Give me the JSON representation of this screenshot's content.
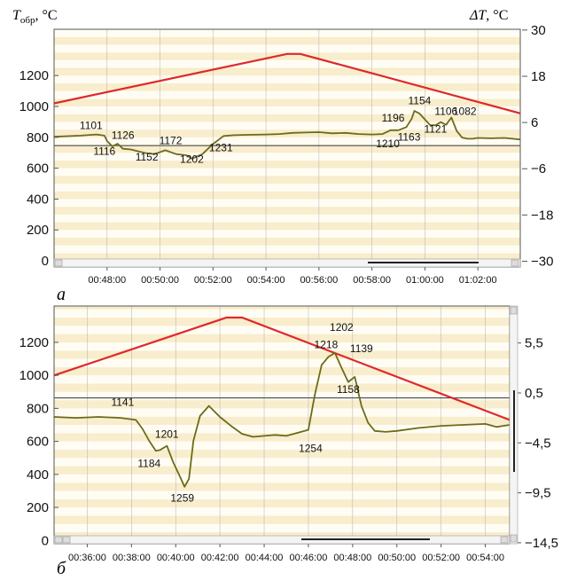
{
  "colors": {
    "band_light": "#fffdf3",
    "band_dark": "#f8edcc",
    "frame": "#555555",
    "temperature_line": "#e0282a",
    "delta_line": "#6c6b1a",
    "reference_line": "#333333",
    "grid": "#bbbbbb"
  },
  "chart_data": [
    {
      "type": "line",
      "panel_label": "а",
      "left_axis_label": {
        "main": "T",
        "sub": "обр",
        "unit": ", °C"
      },
      "right_axis_label": {
        "main": "ΔT",
        "unit": ", °C"
      },
      "x_ticks": [
        "00:48:00",
        "00:50:00",
        "00:52:00",
        "00:54:00",
        "00:56:00",
        "00:58:00",
        "01:00:00",
        "01:02:00"
      ],
      "x_range_min": [
        46.0,
        63.6
      ],
      "y_left_ticks": [
        "0",
        "200",
        "400",
        "600",
        "800",
        "1000",
        "1200"
      ],
      "y_left_range": [
        -40,
        1500
      ],
      "y_right_ticks": [
        "30",
        "18",
        "6",
        "−6",
        "−18",
        "−30"
      ],
      "y_right_range": [
        -31.5,
        30.2
      ],
      "reference_delta": 0,
      "temperature_series": {
        "x_min": [
          46.0,
          54.8,
          55.3,
          63.6
        ],
        "y": [
          1020,
          1340,
          1340,
          955
        ]
      },
      "delta_series": {
        "x_min": [
          46.0,
          47.0,
          47.6,
          47.9,
          48.0,
          48.2,
          48.4,
          48.6,
          48.9,
          49.2,
          49.5,
          49.8,
          50.2,
          50.6,
          51.0,
          51.2,
          51.6,
          52.0,
          52.4,
          52.8,
          53.3,
          54.0,
          54.5,
          55.0,
          55.5,
          56.0,
          56.5,
          57.0,
          57.5,
          58.0,
          58.4,
          58.7,
          59.0,
          59.3,
          59.5,
          59.6,
          59.8,
          60.0,
          60.2,
          60.4,
          60.6,
          60.8,
          61.0,
          61.2,
          61.4,
          61.6,
          61.8,
          62.0,
          62.5,
          63.0,
          63.6
        ],
        "y": [
          2.3,
          2.6,
          2.9,
          2.6,
          1.2,
          -0.2,
          0.5,
          -0.8,
          -1.0,
          -1.5,
          -2.0,
          -2.2,
          -1.2,
          -2.2,
          -2.5,
          -3.4,
          -2.2,
          0.4,
          2.5,
          2.7,
          2.8,
          2.9,
          3.0,
          3.3,
          3.4,
          3.5,
          3.2,
          3.3,
          3.0,
          2.9,
          3.0,
          4.0,
          4.0,
          4.8,
          7.0,
          9.0,
          8.3,
          6.8,
          5.3,
          5.3,
          6.1,
          5.4,
          7.3,
          3.8,
          2.1,
          1.8,
          1.8,
          2.0,
          1.9,
          2.0,
          1.6
        ]
      },
      "annotations": [
        {
          "label": "1101",
          "x": 47.4,
          "y": 4.3
        },
        {
          "label": "1116",
          "x": 47.9,
          "y": -2.4
        },
        {
          "label": "1126",
          "x": 48.6,
          "y": 1.8
        },
        {
          "label": "1152",
          "x": 49.5,
          "y": -3.9
        },
        {
          "label": "1172",
          "x": 50.4,
          "y": 0.4
        },
        {
          "label": "1202",
          "x": 51.2,
          "y": -4.5
        },
        {
          "label": "1231",
          "x": 52.3,
          "y": -1.5
        },
        {
          "label": "1210",
          "x": 58.6,
          "y": -0.4
        },
        {
          "label": "1196",
          "x": 58.8,
          "y": 6.3
        },
        {
          "label": "1163",
          "x": 59.4,
          "y": 1.3
        },
        {
          "label": "1154",
          "x": 59.8,
          "y": 10.7
        },
        {
          "label": "1121",
          "x": 60.4,
          "y": 3.4
        },
        {
          "label": "1106",
          "x": 60.8,
          "y": 8.0
        },
        {
          "label": "1082",
          "x": 61.5,
          "y": 8.0
        }
      ]
    },
    {
      "type": "line",
      "panel_label": "б",
      "x_ticks": [
        "00:36:00",
        "00:38:00",
        "00:40:00",
        "00:42:00",
        "00:44:00",
        "00:46:00",
        "00:48:00",
        "00:50:00",
        "00:52:00",
        "00:54:00"
      ],
      "x_range_min": [
        34.5,
        55.1
      ],
      "y_left_ticks": [
        "0",
        "200",
        "400",
        "600",
        "800",
        "1000",
        "1200"
      ],
      "y_left_range": [
        -20,
        1420
      ],
      "y_right_ticks": [
        "5,5",
        "0,5",
        "−4,5",
        "−9,5",
        "−14,5"
      ],
      "y_right_range": [
        -14.6,
        9.2
      ],
      "reference_delta": 0,
      "temperature_series": {
        "x_min": [
          34.5,
          42.3,
          43.0,
          55.1
        ],
        "y": [
          1000,
          1350,
          1350,
          730
        ]
      },
      "delta_series": {
        "x_min": [
          34.5,
          35.5,
          36.5,
          37.5,
          38.2,
          38.5,
          38.8,
          39.1,
          39.3,
          39.6,
          39.9,
          40.2,
          40.4,
          40.6,
          40.8,
          41.1,
          41.5,
          42.0,
          42.5,
          43.0,
          43.5,
          44.0,
          44.5,
          45.0,
          45.5,
          46.0,
          46.3,
          46.6,
          46.9,
          47.2,
          47.5,
          47.8,
          48.1,
          48.4,
          48.7,
          49.0,
          49.5,
          50.0,
          51.0,
          52.0,
          53.0,
          54.0,
          54.5,
          55.1
        ],
        "y": [
          -1.9,
          -2.0,
          -1.9,
          -2.0,
          -2.2,
          -3.1,
          -4.3,
          -5.3,
          -5.2,
          -4.8,
          -6.5,
          -7.9,
          -8.9,
          -8.1,
          -4.3,
          -1.8,
          -0.8,
          -1.9,
          -2.8,
          -3.6,
          -3.9,
          -3.8,
          -3.7,
          -3.8,
          -3.5,
          -3.2,
          0.4,
          3.3,
          4.1,
          4.5,
          3.0,
          1.6,
          2.1,
          -0.8,
          -2.5,
          -3.3,
          -3.4,
          -3.3,
          -3.0,
          -2.8,
          -2.7,
          -2.6,
          -2.9,
          -2.7
        ]
      },
      "annotations": [
        {
          "label": "1141",
          "x": 37.6,
          "y": -0.8
        },
        {
          "label": "1184",
          "x": 38.8,
          "y": -6.9
        },
        {
          "label": "1201",
          "x": 39.6,
          "y": -4.0
        },
        {
          "label": "1259",
          "x": 40.3,
          "y": -10.4
        },
        {
          "label": "1254",
          "x": 46.1,
          "y": -5.4
        },
        {
          "label": "1218",
          "x": 46.8,
          "y": 5.0
        },
        {
          "label": "1202",
          "x": 47.5,
          "y": 6.7
        },
        {
          "label": "1158",
          "x": 47.8,
          "y": 0.5
        },
        {
          "label": "1139",
          "x": 48.4,
          "y": 4.6
        }
      ]
    }
  ]
}
